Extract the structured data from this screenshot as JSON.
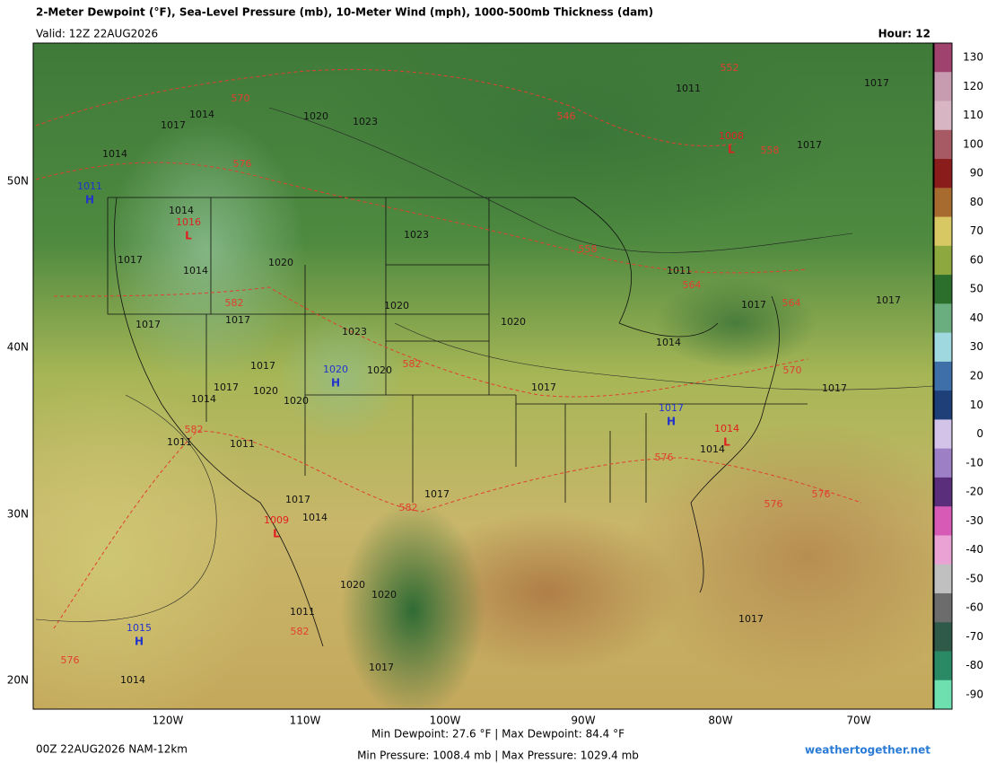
{
  "header": {
    "title": "2-Meter Dewpoint (°F), Sea-Level Pressure (mb), 10-Meter Wind (mph), 1000-500mb Thickness (dam)",
    "valid": "Valid: 12Z 22AUG2026",
    "hour": "Hour: 12"
  },
  "axes": {
    "latitudes": [
      "50N",
      "40N",
      "30N",
      "20N"
    ],
    "longitudes": [
      "120W",
      "110W",
      "100W",
      "90W",
      "80W",
      "70W"
    ]
  },
  "colorbar": {
    "ticks": [
      130,
      120,
      110,
      100,
      90,
      80,
      70,
      60,
      50,
      40,
      30,
      20,
      10,
      0,
      -10,
      -20,
      -30,
      -40,
      -50,
      -60,
      -70,
      -80,
      -90
    ],
    "colors": [
      "#a0426e",
      "#c79bb0",
      "#d7b5c2",
      "#a75a64",
      "#8b1c1c",
      "#a86b2f",
      "#d8c863",
      "#8da83f",
      "#2c6f2c",
      "#6aae7f",
      "#a0d8e0",
      "#3f6fa8",
      "#1e3f78",
      "#d3c3e8",
      "#9d7fc5",
      "#5a2e7a",
      "#d65ab6",
      "#e9a2d3",
      "#c0c0c0",
      "#6c6c6c",
      "#2f5a4a",
      "#2b8a66",
      "#6ee0b0"
    ]
  },
  "map": {
    "isobar_labels": [
      1017,
      1014,
      1014,
      1020,
      1023,
      1011,
      1017,
      1017,
      1014,
      1017,
      1014,
      1020,
      1023,
      1011,
      1017,
      1017,
      1020,
      1020,
      1014,
      1017,
      1017,
      1023,
      1020,
      1017,
      1017,
      1020,
      1014,
      1020,
      1017,
      1014,
      1017,
      1011,
      1011,
      1017,
      1014,
      1017,
      1020,
      1020,
      1011,
      1017,
      1014,
      1017
    ],
    "thickness_labels": [
      570,
      576,
      546,
      552,
      558,
      558,
      564,
      582,
      564,
      582,
      570,
      582,
      576,
      582,
      576,
      576,
      582,
      576
    ],
    "centers": [
      {
        "pressure": 1011,
        "symbol": "H"
      },
      {
        "pressure": 1008,
        "symbol": "L"
      },
      {
        "pressure": 1016,
        "symbol": "L"
      },
      {
        "pressure": 1020,
        "symbol": "H"
      },
      {
        "pressure": 1017,
        "symbol": "H"
      },
      {
        "pressure": 1014,
        "symbol": "L"
      },
      {
        "pressure": 1009,
        "symbol": "L"
      },
      {
        "pressure": 1015,
        "symbol": "H"
      }
    ]
  },
  "footer": {
    "run": "00Z 22AUG2026 NAM-12km",
    "dewpoint": "Min Dewpoint: 27.6 °F | Max Dewpoint: 84.4 °F",
    "pressure": "Min Pressure: 1008.4 mb | Max Pressure: 1029.4 mb",
    "site": "weathertogether.net"
  }
}
